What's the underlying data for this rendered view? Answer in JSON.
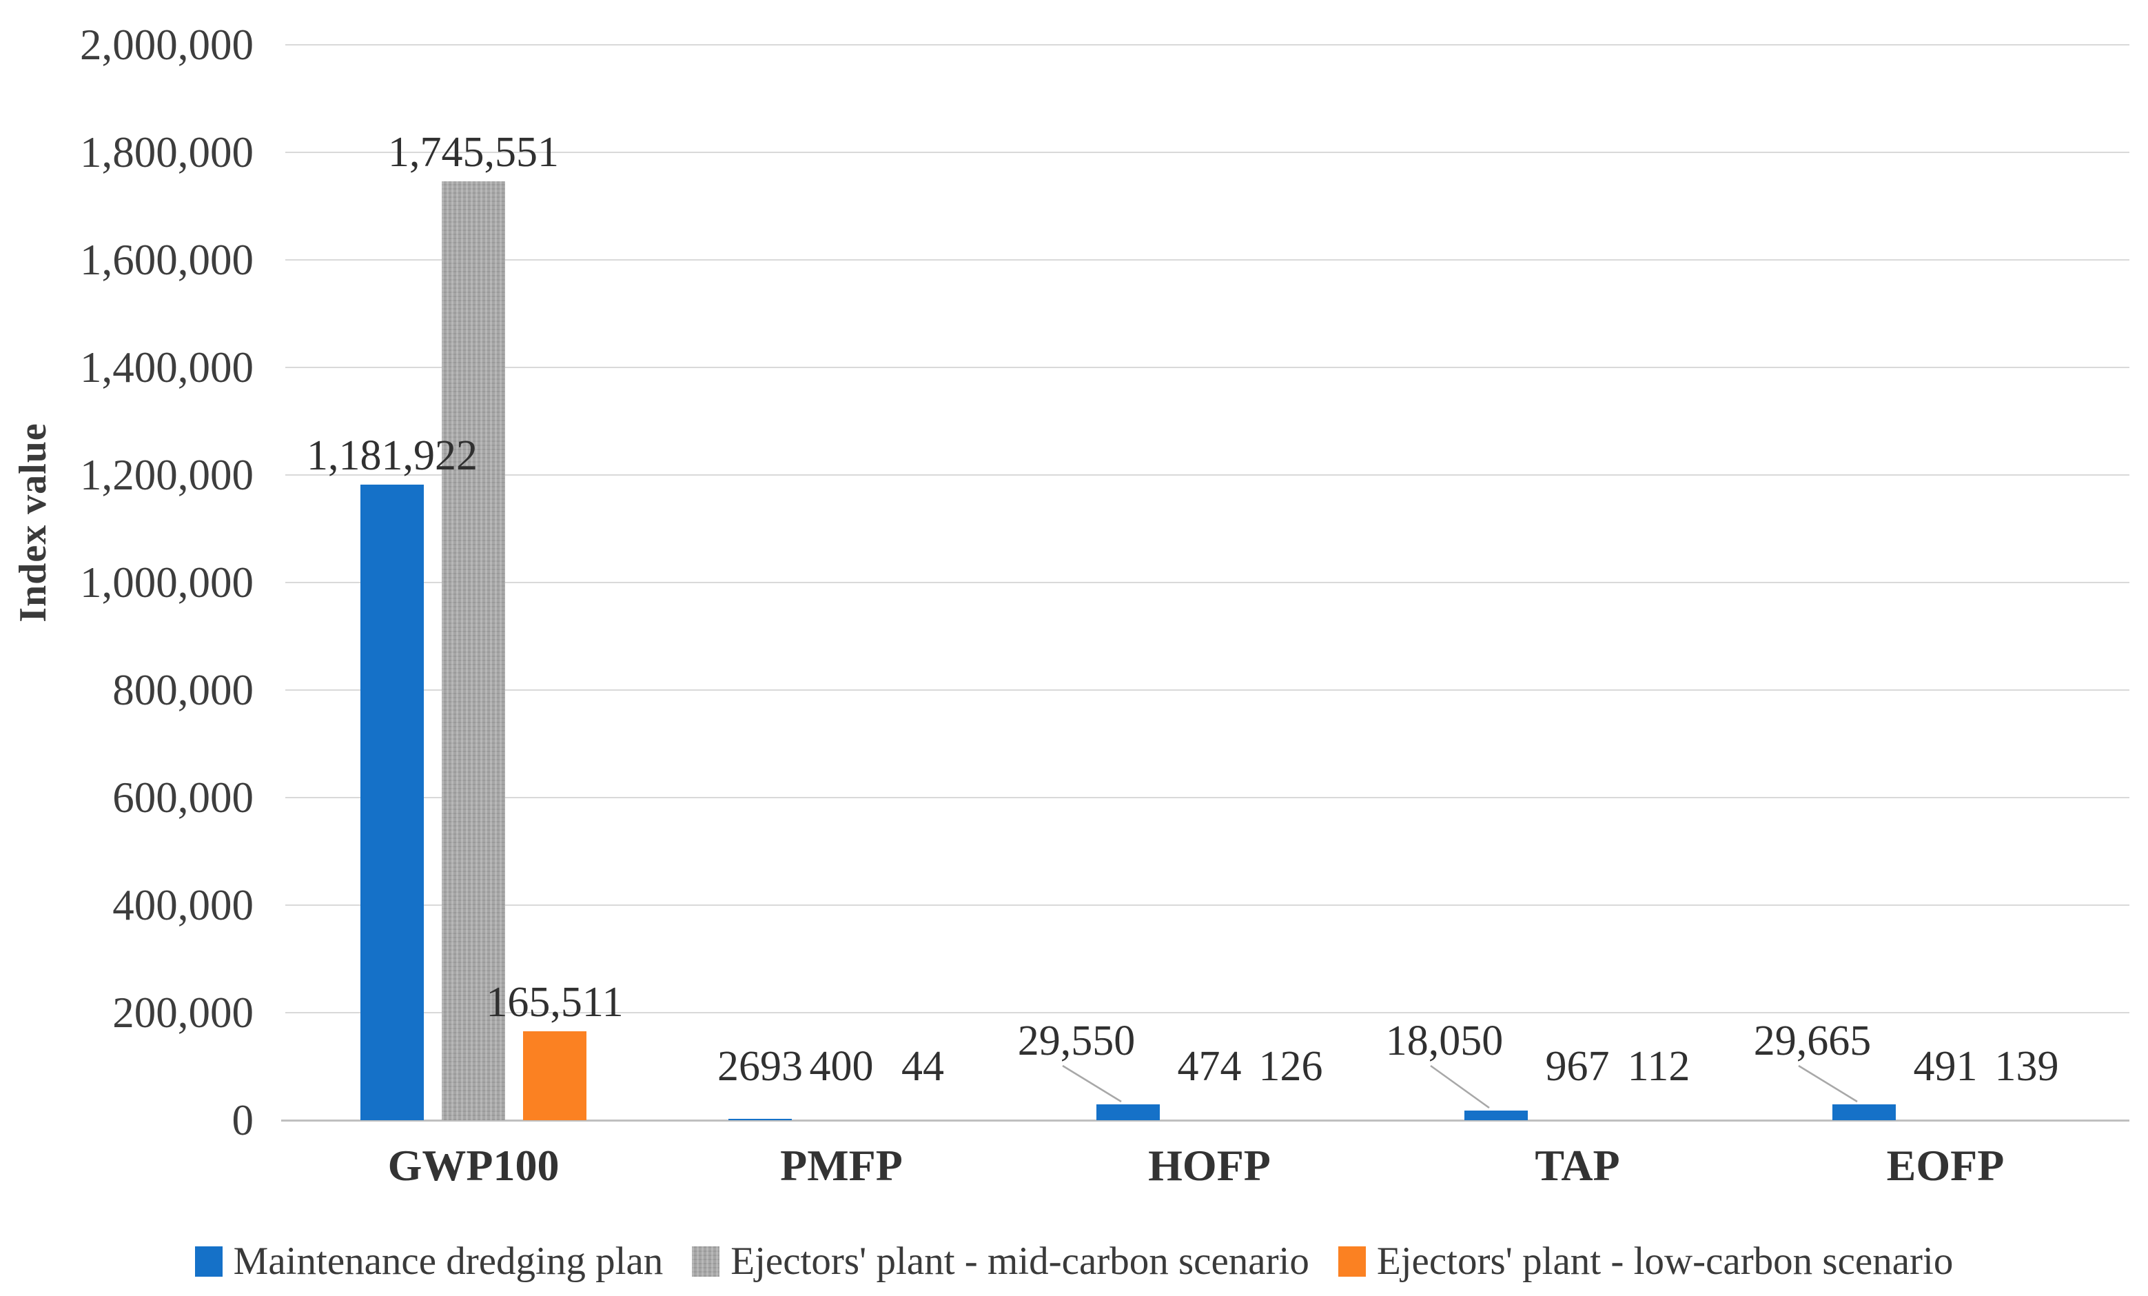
{
  "chart_data": {
    "type": "bar",
    "title": "",
    "ylabel": "Index value",
    "xlabel": "",
    "categories": [
      "GWP100",
      "PMFP",
      "HOFP",
      "TAP",
      "EOFP"
    ],
    "series": [
      {
        "name": "Maintenance dredging plan",
        "color": "#1571c8",
        "values": [
          1181922,
          2693,
          29550,
          18050,
          29665
        ],
        "labels": [
          "1,181,922",
          "2693",
          "29,550",
          "18,050",
          "29,665"
        ]
      },
      {
        "name": "Ejectors' plant - mid-carbon scenario",
        "color": "#a6a6a6",
        "values": [
          1745551,
          400,
          474,
          967,
          491
        ],
        "labels": [
          "1,745,551",
          "400",
          "474",
          "967",
          "491"
        ]
      },
      {
        "name": "Ejectors' plant - low-carbon scenario",
        "color": "#fb8122",
        "values": [
          165511,
          44,
          126,
          112,
          139
        ],
        "labels": [
          "165,511",
          "44",
          "126",
          "112",
          "139"
        ]
      }
    ],
    "ylim": [
      0,
      2000000
    ],
    "ytick_step": 200000,
    "yticks": [
      "0",
      "200,000",
      "400,000",
      "600,000",
      "800,000",
      "1,000,000",
      "1,200,000",
      "1,400,000",
      "1,600,000",
      "1,800,000",
      "2,000,000"
    ],
    "grid": true,
    "gridline_color": "#d9d9d9",
    "axis_line_color": "#bfbfbf",
    "leader_line_color": "#a8a8a8",
    "legend_position": "bottom"
  }
}
